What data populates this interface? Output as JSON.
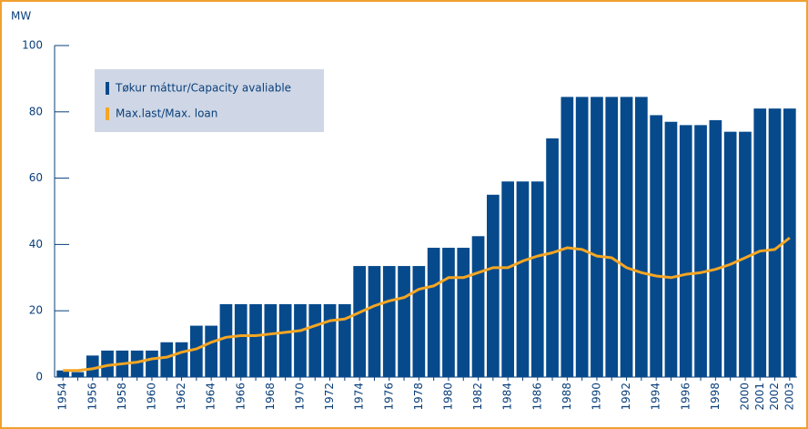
{
  "chart_data": {
    "type": "bar",
    "y_label": "MW",
    "categories": [
      "1954",
      null,
      "1956",
      null,
      "1958",
      null,
      "1960",
      null,
      "1962",
      null,
      "1964",
      null,
      "1966",
      null,
      "1968",
      null,
      "1970",
      null,
      "1972",
      null,
      "1974",
      null,
      "1976",
      null,
      "1978",
      null,
      "1980",
      null,
      "1982",
      null,
      "1984",
      null,
      "1986",
      null,
      "1988",
      null,
      "1990",
      null,
      "1992",
      null,
      "1994",
      null,
      "1996",
      null,
      "1998",
      null,
      "2000",
      "2001",
      "2002",
      "2003"
    ],
    "series": [
      {
        "name": "Tøkur máttur/Capacity avaliable",
        "type": "bar",
        "color": "#064a8c",
        "values": [
          2,
          1.5,
          6.5,
          8,
          8,
          8,
          8,
          10.5,
          10.5,
          15.5,
          15.5,
          22,
          22,
          22,
          22,
          22,
          22,
          22,
          22,
          22,
          33.5,
          33.5,
          33.5,
          33.5,
          33.5,
          39,
          39,
          39,
          42.5,
          55,
          59,
          59,
          59,
          72,
          84.5,
          84.5,
          84.5,
          84.5,
          84.5,
          84.5,
          79,
          77,
          76,
          76,
          77.5,
          74,
          74,
          81,
          81,
          81
        ]
      },
      {
        "name": "Max.last/Max. loan",
        "type": "line",
        "color": "#f5a623",
        "values": [
          2,
          2,
          2.5,
          3.5,
          4,
          4.5,
          5.5,
          6,
          7.5,
          8.5,
          10.5,
          12,
          12.5,
          12.5,
          13,
          13.5,
          14,
          15.5,
          17,
          17.5,
          19.5,
          21.5,
          23,
          24,
          26.5,
          27.5,
          30,
          30,
          31.5,
          33,
          33,
          35,
          36.5,
          37.5,
          39,
          38.5,
          36.5,
          36,
          33,
          31.5,
          30.5,
          30,
          31,
          31.5,
          32.5,
          34,
          36,
          38,
          38.5,
          42
        ]
      }
    ],
    "ylim": [
      0,
      100
    ],
    "yticks": [
      0,
      20,
      40,
      60,
      80,
      100
    ],
    "legend": "upper left"
  }
}
